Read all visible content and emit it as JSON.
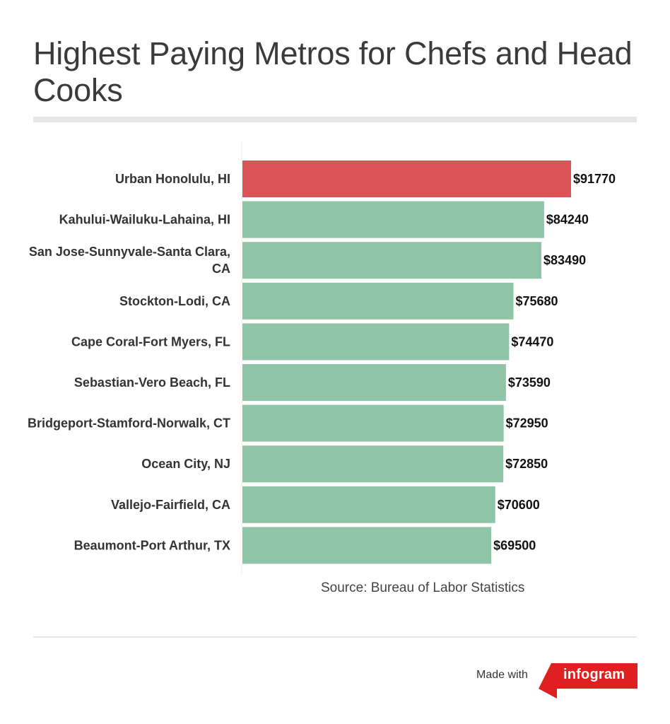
{
  "title": "Highest Paying Metros for Chefs and Head Cooks",
  "source": "Source: Bureau of Labor Statistics",
  "footer": {
    "made_with": "Made with",
    "brand": "infogram",
    "brand_color": "#e02020"
  },
  "colors": {
    "highlight": "#dc5357",
    "bar": "#8fc4a7"
  },
  "chart_data": {
    "type": "bar",
    "orientation": "horizontal",
    "categories": [
      "Urban Honolulu, HI",
      "Kahului-Wailuku-Lahaina, HI",
      "San Jose-Sunnyvale-Santa Clara, CA",
      "Stockton-Lodi, CA",
      "Cape Coral-Fort Myers, FL",
      "Sebastian-Vero Beach, FL",
      "Bridgeport-Stamford-Norwalk, CT",
      "Ocean City, NJ",
      "Vallejo-Fairfield, CA",
      "Beaumont-Port Arthur, TX"
    ],
    "values": [
      91770,
      84240,
      83490,
      75680,
      74470,
      73590,
      72950,
      72850,
      70600,
      69500
    ],
    "value_labels": [
      "$91770",
      "$84240",
      "$83490",
      "$75680",
      "$74470",
      "$73590",
      "$72950",
      "$72850",
      "$70600",
      "$69500"
    ],
    "highlighted_index": 0,
    "xlim": [
      0,
      91770
    ],
    "grid": false,
    "legend": "none"
  }
}
